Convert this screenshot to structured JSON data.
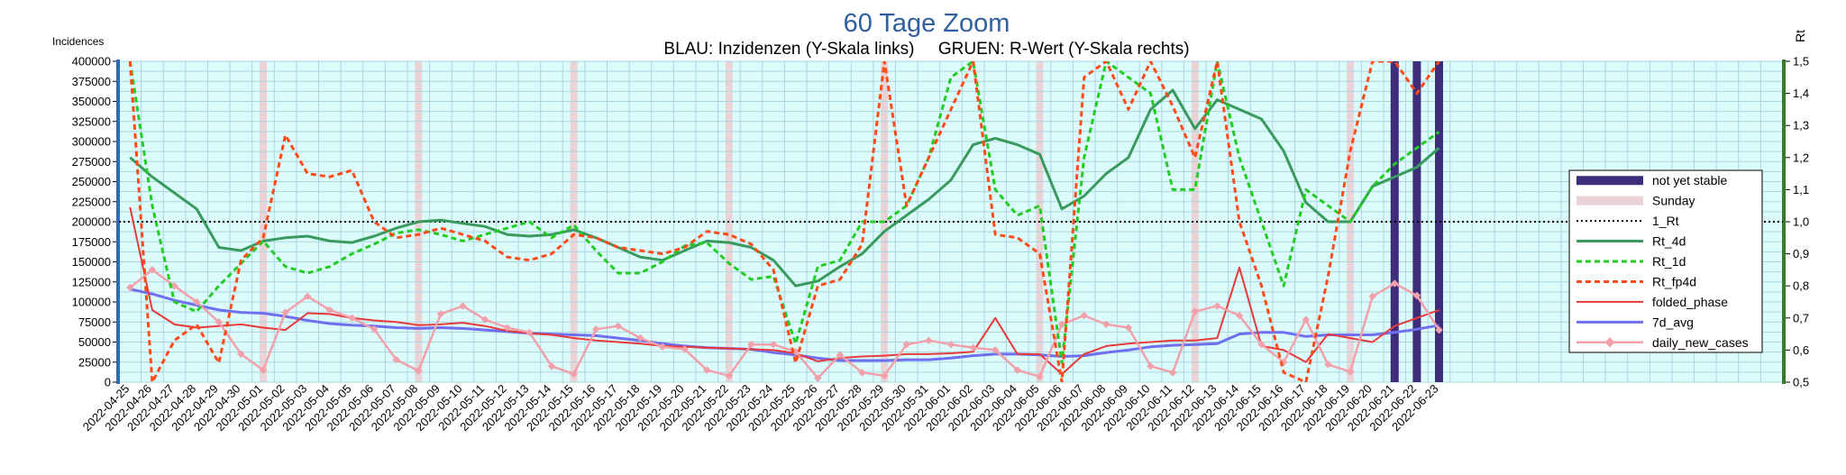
{
  "chart_data": {
    "type": "line",
    "title": "60 Tage Zoom",
    "subtitle": "BLAU: Inzidenzen (Y-Skala links)     GRUEN: R-Wert (Y-Skala rechts)",
    "ylabel_left": "Incidences",
    "ylabel_right": "Rt",
    "ylim_left": [
      0,
      400000
    ],
    "ylim_right": [
      0.5,
      1.5
    ],
    "yticks_left": [
      "0",
      "25000",
      "50000",
      "75000",
      "100000",
      "125000",
      "150000",
      "175000",
      "200000",
      "225000",
      "250000",
      "275000",
      "300000",
      "325000",
      "350000",
      "375000",
      "400000"
    ],
    "yticks_right": [
      "0,5",
      "0,6",
      "0,7",
      "0,8",
      "0,9",
      "1,0",
      "1,1",
      "1,2",
      "1,3",
      "1,4",
      "1,5"
    ],
    "x": [
      "2022-04-25",
      "2022-04-26",
      "2022-04-27",
      "2022-04-28",
      "2022-04-29",
      "2022-04-30",
      "2022-05-01",
      "2022-05-02",
      "2022-05-03",
      "2022-05-04",
      "2022-05-05",
      "2022-05-06",
      "2022-05-07",
      "2022-05-08",
      "2022-05-09",
      "2022-05-10",
      "2022-05-11",
      "2022-05-12",
      "2022-05-13",
      "2022-05-14",
      "2022-05-15",
      "2022-05-16",
      "2022-05-17",
      "2022-05-18",
      "2022-05-19",
      "2022-05-20",
      "2022-05-21",
      "2022-05-22",
      "2022-05-23",
      "2022-05-24",
      "2022-05-25",
      "2022-05-26",
      "2022-05-27",
      "2022-05-28",
      "2022-05-29",
      "2022-05-30",
      "2022-05-31",
      "2022-06-01",
      "2022-06-02",
      "2022-06-03",
      "2022-06-04",
      "2022-06-05",
      "2022-06-06",
      "2022-06-07",
      "2022-06-08",
      "2022-06-09",
      "2022-06-10",
      "2022-06-11",
      "2022-06-12",
      "2022-06-13",
      "2022-06-14",
      "2022-06-15",
      "2022-06-16",
      "2022-06-17",
      "2022-06-18",
      "2022-06-19",
      "2022-06-20",
      "2022-06-21",
      "2022-06-22",
      "2022-06-23"
    ],
    "sundays": [
      "2022-05-01",
      "2022-05-08",
      "2022-05-15",
      "2022-05-22",
      "2022-05-29",
      "2022-06-05",
      "2022-06-12",
      "2022-06-19"
    ],
    "not_yet_stable": [
      "2022-06-21",
      "2022-06-22",
      "2022-06-23"
    ],
    "hline": {
      "name": "1_Rt",
      "value": 1.0,
      "axis": "right"
    },
    "series": [
      {
        "name": "Rt_4d",
        "axis": "right",
        "color": "#3a9a5e",
        "values": [
          1.2,
          1.14,
          1.09,
          1.04,
          0.92,
          0.91,
          0.94,
          0.95,
          0.955,
          0.94,
          0.935,
          0.955,
          0.98,
          1.0,
          1.005,
          0.995,
          0.985,
          0.96,
          0.955,
          0.96,
          0.975,
          0.95,
          0.92,
          0.89,
          0.88,
          0.91,
          0.94,
          0.935,
          0.92,
          0.88,
          0.8,
          0.815,
          0.86,
          0.9,
          0.97,
          1.02,
          1.07,
          1.13,
          1.24,
          1.26,
          1.24,
          1.21,
          1.04,
          1.08,
          1.15,
          1.2,
          1.35,
          1.41,
          1.29,
          1.38,
          1.35,
          1.32,
          1.22,
          1.06,
          1.0,
          1.0,
          1.11,
          1.14,
          1.17,
          1.23
        ]
      },
      {
        "name": "Rt_1d",
        "axis": "right",
        "color": "#22cc22",
        "values": [
          1.5,
          1.05,
          0.75,
          0.72,
          0.8,
          0.87,
          0.94,
          0.86,
          0.84,
          0.86,
          0.9,
          0.93,
          0.965,
          0.975,
          0.96,
          0.94,
          0.96,
          0.98,
          1.0,
          0.95,
          0.99,
          0.91,
          0.84,
          0.84,
          0.875,
          0.925,
          0.935,
          0.87,
          0.82,
          0.83,
          0.62,
          0.86,
          0.88,
          1.0,
          1.0,
          1.05,
          1.2,
          1.45,
          1.5,
          1.1,
          1.02,
          1.05,
          0.56,
          1.2,
          1.5,
          1.45,
          1.4,
          1.1,
          1.1,
          1.5,
          1.2,
          1.0,
          0.8,
          1.1,
          1.05,
          1.0,
          1.11,
          1.18,
          1.23,
          1.28
        ]
      },
      {
        "name": "Rt_fp4d",
        "axis": "right",
        "color": "#ff4a1a",
        "values": [
          1.5,
          0.5,
          0.63,
          0.68,
          0.56,
          0.88,
          0.95,
          1.27,
          1.15,
          1.14,
          1.16,
          1.0,
          0.95,
          0.96,
          0.98,
          0.96,
          0.94,
          0.89,
          0.88,
          0.9,
          0.96,
          0.95,
          0.92,
          0.91,
          0.9,
          0.92,
          0.97,
          0.96,
          0.93,
          0.85,
          0.56,
          0.8,
          0.82,
          0.93,
          1.5,
          1.05,
          1.2,
          1.35,
          1.5,
          0.96,
          0.95,
          0.9,
          0.5,
          1.45,
          1.5,
          1.35,
          1.5,
          1.36,
          1.2,
          1.5,
          1.0,
          0.8,
          0.53,
          0.5,
          0.83,
          1.22,
          1.5,
          1.5,
          1.4,
          1.5
        ]
      },
      {
        "name": "folded_phase",
        "axis": "left",
        "color": "#e83a3a",
        "values": [
          218000,
          90000,
          72000,
          68000,
          70000,
          72000,
          68000,
          65000,
          86000,
          85000,
          80000,
          77000,
          75000,
          71000,
          72000,
          74000,
          70000,
          64000,
          61000,
          59000,
          55000,
          52000,
          50000,
          48000,
          45000,
          44000,
          43000,
          42000,
          41000,
          40000,
          36000,
          26000,
          30000,
          32000,
          33000,
          35000,
          35000,
          36000,
          38000,
          80000,
          35000,
          35000,
          10000,
          35000,
          45000,
          48000,
          50000,
          52000,
          52000,
          55000,
          143000,
          45000,
          40000,
          25000,
          60000,
          55000,
          50000,
          70000,
          80000,
          90000
        ]
      },
      {
        "name": "7d_avg",
        "axis": "left",
        "color": "#6f6ff0",
        "values": [
          116000,
          110000,
          102000,
          96000,
          90000,
          87000,
          86000,
          82000,
          77000,
          73000,
          71000,
          70000,
          68000,
          67000,
          68000,
          67000,
          65000,
          63000,
          61000,
          60000,
          59000,
          58000,
          55000,
          52000,
          48000,
          45000,
          43000,
          42000,
          41000,
          37000,
          34000,
          30000,
          27000,
          27000,
          27000,
          28000,
          28000,
          30000,
          33000,
          35000,
          35000,
          34000,
          32000,
          33000,
          37000,
          40000,
          44000,
          46000,
          47000,
          48000,
          60000,
          62000,
          62000,
          57000,
          59000,
          59000,
          59000,
          62000,
          66000,
          71000
        ]
      },
      {
        "name": "daily_new_cases",
        "axis": "left",
        "color": "#f2a0aa",
        "values": [
          118000,
          140000,
          120000,
          100000,
          75000,
          35000,
          15000,
          87000,
          107000,
          90000,
          80000,
          66000,
          28000,
          14000,
          85000,
          95000,
          78000,
          68000,
          62000,
          20000,
          10000,
          66000,
          70000,
          55000,
          44000,
          41000,
          15000,
          8000,
          47000,
          47000,
          38000,
          5000,
          34000,
          12000,
          8000,
          47000,
          52000,
          47000,
          43000,
          40000,
          15000,
          7000,
          72000,
          83000,
          72000,
          68000,
          20000,
          12000,
          88000,
          95000,
          83000,
          47000,
          25000,
          78000,
          22000,
          13000,
          107000,
          123000,
          108000,
          65000
        ]
      }
    ],
    "legend": [
      "not yet stable",
      "Sunday",
      "1_Rt",
      "Rt_4d",
      "Rt_1d",
      "Rt_fp4d",
      "folded_phase",
      "7d_avg",
      "daily_new_cases"
    ],
    "legend_position": "right",
    "grid": true
  },
  "colors": {
    "plot_bg": "#dcfcfc",
    "grid": "#a8d6e0",
    "left_axis": "#2f6ab4",
    "right_axis": "#3b7a2a",
    "not_yet_stable": "#3e2d7a",
    "sunday": "#e9d3d6",
    "title": "#2f5f9e"
  }
}
